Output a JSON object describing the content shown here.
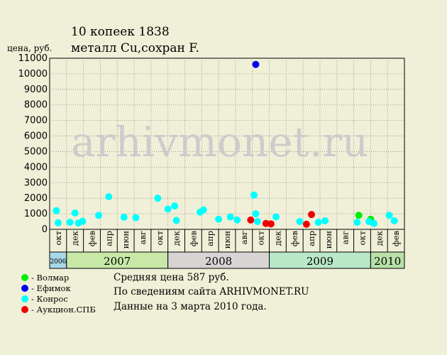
{
  "title": {
    "line1": "10 копеек 1838",
    "line2": "металл Cu,сохран F."
  },
  "watermark": "arhivmonet.ru",
  "info": [
    "Средняя цена 587 руб.",
    "По  сведениям сайта ARHIVMONET.RU",
    "Данные на 3 марта 2010 года."
  ],
  "legend": [
    {
      "label": "- Волмар",
      "color": "#00ee00"
    },
    {
      "label": "- Ефимок",
      "color": "#0000ee"
    },
    {
      "label": "- Конрос",
      "color": "#00ffff"
    },
    {
      "label": "- Аукцион.СПБ",
      "color": "#ee0000"
    }
  ],
  "chart_data": {
    "type": "scatter",
    "ylabel": "цена, руб.",
    "ylim": [
      0,
      11000
    ],
    "yticks": [
      0,
      1000,
      2000,
      3000,
      4000,
      5000,
      6000,
      7000,
      8000,
      9000,
      10000,
      11000
    ],
    "months": [
      "окт",
      "дек",
      "фев",
      "апр",
      "июн",
      "авг",
      "окт",
      "дек",
      "фев",
      "апр",
      "июн",
      "авг",
      "окт",
      "дек",
      "фев",
      "апр",
      "июн",
      "авг",
      "окт",
      "дек",
      "фев"
    ],
    "years": [
      {
        "label": "2006",
        "start": 0,
        "end": 1,
        "color": "#a8d8e8"
      },
      {
        "label": "2007",
        "start": 1,
        "end": 7,
        "color": "#c8e8a8"
      },
      {
        "label": "2008",
        "start": 7,
        "end": 13,
        "color": "#d8d4d4"
      },
      {
        "label": "2009",
        "start": 13,
        "end": 19,
        "color": "#b8e8c8"
      },
      {
        "label": "2010",
        "start": 19,
        "end": 20,
        "color": "#b8e0a8"
      }
    ],
    "grid": true,
    "series": [
      {
        "name": "Волмар",
        "color": "#00ee00",
        "points": [
          [
            18.3,
            900
          ],
          [
            19.0,
            650
          ]
        ]
      },
      {
        "name": "Ефимок",
        "color": "#0000ee",
        "points": [
          [
            12.2,
            10600
          ]
        ]
      },
      {
        "name": "Конрос",
        "color": "#00ffff",
        "points": [
          [
            0.4,
            1200
          ],
          [
            0.5,
            420
          ],
          [
            1.2,
            450
          ],
          [
            1.5,
            1050
          ],
          [
            1.7,
            400
          ],
          [
            1.95,
            520
          ],
          [
            2.9,
            900
          ],
          [
            3.5,
            2100
          ],
          [
            4.4,
            780
          ],
          [
            5.1,
            750
          ],
          [
            6.4,
            2000
          ],
          [
            7.0,
            1300
          ],
          [
            7.4,
            1500
          ],
          [
            7.5,
            570
          ],
          [
            8.9,
            1100
          ],
          [
            9.1,
            1250
          ],
          [
            10.0,
            650
          ],
          [
            10.7,
            800
          ],
          [
            11.1,
            600
          ],
          [
            12.1,
            2200
          ],
          [
            12.2,
            1000
          ],
          [
            12.3,
            500
          ],
          [
            13.4,
            800
          ],
          [
            14.8,
            500
          ],
          [
            15.9,
            450
          ],
          [
            16.3,
            550
          ],
          [
            18.2,
            450
          ],
          [
            18.9,
            500
          ],
          [
            19.2,
            380
          ],
          [
            20.1,
            900
          ],
          [
            20.4,
            550
          ]
        ]
      },
      {
        "name": "Аукцион.СПБ",
        "color": "#ee0000",
        "points": [
          [
            11.9,
            600
          ],
          [
            12.8,
            380
          ],
          [
            13.1,
            350
          ],
          [
            15.2,
            330
          ],
          [
            15.5,
            950
          ]
        ]
      }
    ]
  }
}
